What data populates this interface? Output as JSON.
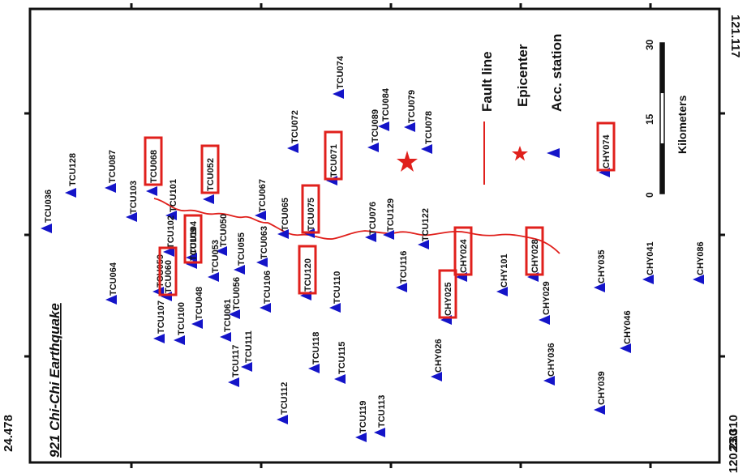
{
  "title": "921 Chi-Chi Earthquake",
  "coords": {
    "top_left": "24.478",
    "top_right": "121.117",
    "bottom_left": "23.310",
    "bottom_right": "120.230"
  },
  "legend": {
    "fault_line": "Fault line",
    "epicenter": "Epicenter",
    "station": "Acc. station"
  },
  "scale": {
    "unit": "Kilometers",
    "ticks": [
      "0",
      "15",
      "30"
    ]
  },
  "colors": {
    "station": "#1414c8",
    "fault": "#e0201c",
    "epicenter": "#e0201c",
    "highlight": "#e0201c"
  },
  "stations": [
    {
      "name": "TCU036"
    },
    {
      "name": "TCU128"
    },
    {
      "name": "TCU087"
    },
    {
      "name": "TCU103"
    },
    {
      "name": "TCU068",
      "highlighted": true
    },
    {
      "name": "TCU101"
    },
    {
      "name": "TCU052",
      "highlighted": true
    },
    {
      "name": "TCU067"
    },
    {
      "name": "TCU072"
    },
    {
      "name": "TCU074"
    },
    {
      "name": "TCU084"
    },
    {
      "name": "TCU079"
    },
    {
      "name": "TCU089"
    },
    {
      "name": "TCU078"
    },
    {
      "name": "TCU071",
      "highlighted": true
    },
    {
      "name": "TCU075",
      "highlighted": true
    },
    {
      "name": "TCU065"
    },
    {
      "name": "TCU076"
    },
    {
      "name": "TCU129"
    },
    {
      "name": "TCU122"
    },
    {
      "name": "TCU116"
    },
    {
      "name": "TCU102"
    },
    {
      "name": "TCU059"
    },
    {
      "name": "TCU064"
    },
    {
      "name": "TCU107"
    },
    {
      "name": "TCU060",
      "highlighted": true
    },
    {
      "name": "TCU104"
    },
    {
      "name": "TCU100"
    },
    {
      "name": "TCU048"
    },
    {
      "name": "TCU109",
      "highlighted": true
    },
    {
      "name": "TCU050"
    },
    {
      "name": "TCU055"
    },
    {
      "name": "TCU053"
    },
    {
      "name": "TCU063"
    },
    {
      "name": "TCU056"
    },
    {
      "name": "TCU106"
    },
    {
      "name": "TCU061"
    },
    {
      "name": "TCU117"
    },
    {
      "name": "TCU111"
    },
    {
      "name": "TCU112"
    },
    {
      "name": "TCU118"
    },
    {
      "name": "TCU115"
    },
    {
      "name": "TCU119"
    },
    {
      "name": "TCU113"
    },
    {
      "name": "TCU120",
      "highlighted": true
    },
    {
      "name": "TCU110"
    },
    {
      "name": "CHY024",
      "highlighted": true
    },
    {
      "name": "CHY025",
      "highlighted": true
    },
    {
      "name": "CHY026"
    },
    {
      "name": "CHY101"
    },
    {
      "name": "CHY028",
      "highlighted": true
    },
    {
      "name": "CHY029"
    },
    {
      "name": "CHY036"
    },
    {
      "name": "CHY035"
    },
    {
      "name": "CHY041"
    },
    {
      "name": "CHY046"
    },
    {
      "name": "CHY039"
    },
    {
      "name": "CHY086"
    },
    {
      "name": "CHY074",
      "highlighted": true
    }
  ]
}
